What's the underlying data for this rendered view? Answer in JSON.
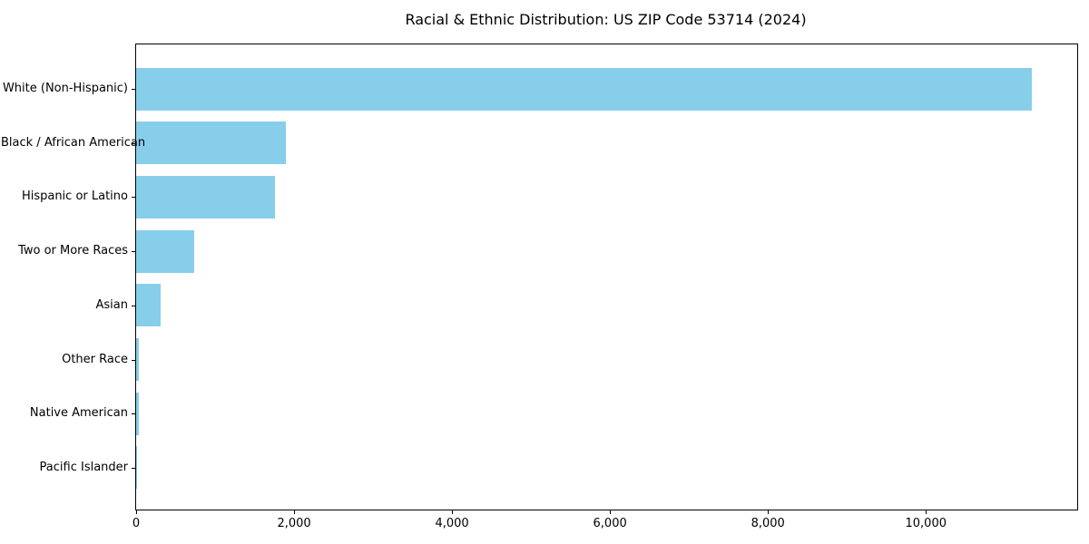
{
  "chart_data": {
    "type": "bar",
    "orientation": "horizontal",
    "title": "Racial & Ethnic Distribution: US ZIP Code 53714 (2024)",
    "xlabel": "",
    "ylabel": "",
    "categories": [
      "White (Non-Hispanic)",
      "Black / African American",
      "Hispanic or Latino",
      "Two or More Races",
      "Asian",
      "Other Race",
      "Native American",
      "Pacific Islander"
    ],
    "values": [
      11340,
      1900,
      1760,
      730,
      310,
      40,
      30,
      8
    ],
    "xlim": [
      0,
      11916
    ],
    "x_ticks": [
      0,
      2000,
      4000,
      6000,
      8000,
      10000
    ],
    "x_tick_labels": [
      "0",
      "2,000",
      "4,000",
      "6,000",
      "8,000",
      "10,000"
    ],
    "grid": false,
    "legend": null,
    "bar_color": "#87CEEB",
    "axis_color": "#000000",
    "background_color": "#FFFFFF"
  }
}
